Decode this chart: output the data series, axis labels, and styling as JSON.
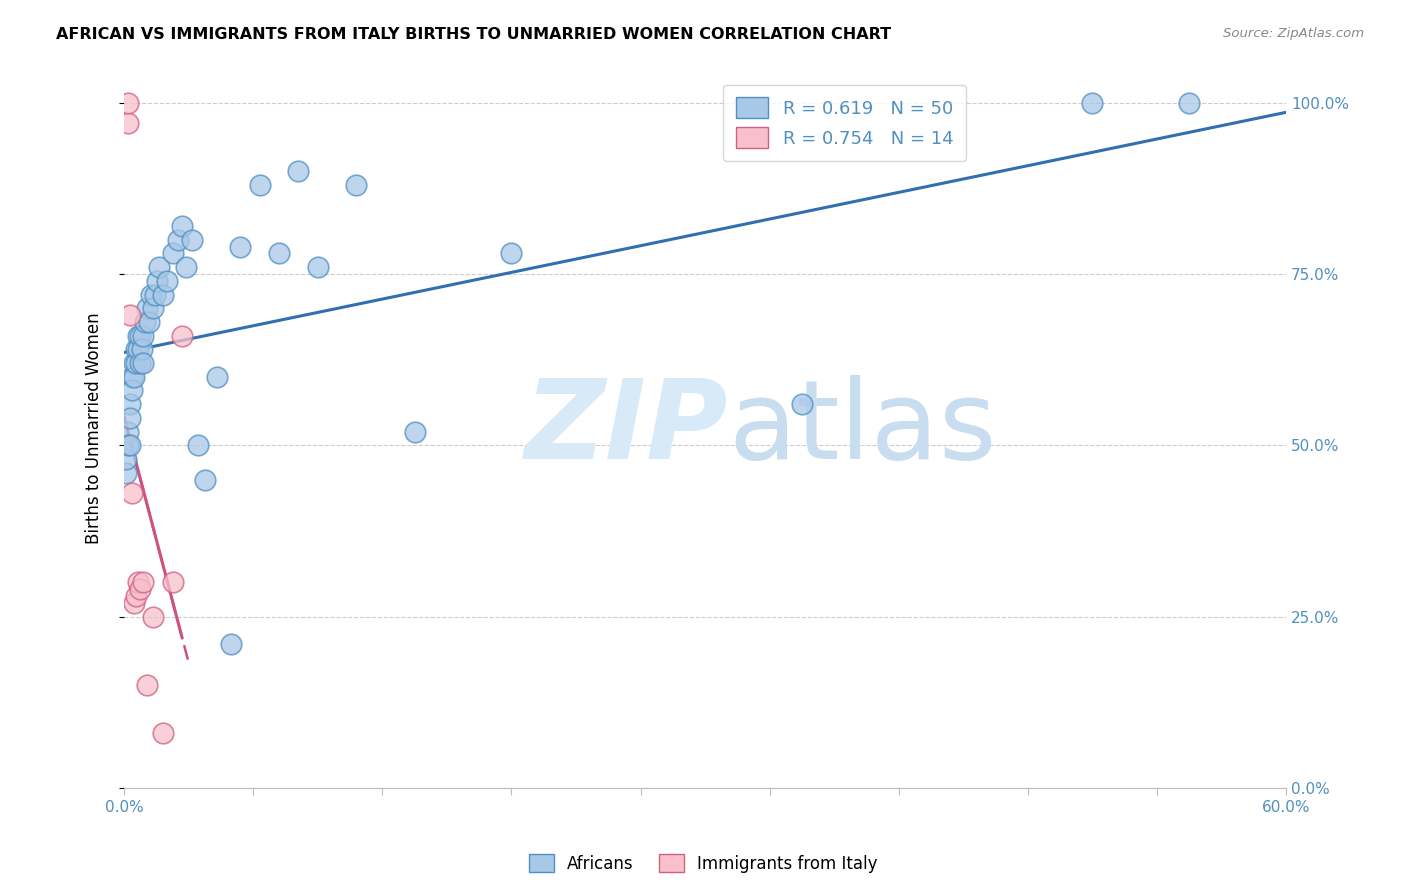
{
  "title": "AFRICAN VS IMMIGRANTS FROM ITALY BIRTHS TO UNMARRIED WOMEN CORRELATION CHART",
  "source": "Source: ZipAtlas.com",
  "ylabel": "Births to Unmarried Women",
  "legend_africans": "Africans",
  "legend_italy": "Immigrants from Italy",
  "R_africans": 0.619,
  "N_africans": 50,
  "R_italy": 0.754,
  "N_italy": 14,
  "blue_scatter_color": "#a8c8e8",
  "blue_scatter_edge": "#5090c0",
  "pink_scatter_color": "#f8c0cc",
  "pink_scatter_edge": "#d06080",
  "blue_line_color": "#3070b0",
  "pink_line_color": "#d05080",
  "watermark_color": "#d8eaf8",
  "grid_color": "#cccccc",
  "tick_color": "#5090c0",
  "africans_x": [
    0.001,
    0.001,
    0.002,
    0.002,
    0.003,
    0.003,
    0.003,
    0.004,
    0.004,
    0.005,
    0.005,
    0.006,
    0.006,
    0.007,
    0.007,
    0.008,
    0.008,
    0.009,
    0.01,
    0.01,
    0.011,
    0.012,
    0.013,
    0.014,
    0.015,
    0.016,
    0.017,
    0.018,
    0.02,
    0.022,
    0.025,
    0.028,
    0.03,
    0.032,
    0.035,
    0.038,
    0.042,
    0.048,
    0.055,
    0.06,
    0.07,
    0.08,
    0.09,
    0.1,
    0.12,
    0.15,
    0.2,
    0.35,
    0.5,
    0.55
  ],
  "africans_y": [
    0.46,
    0.48,
    0.52,
    0.5,
    0.56,
    0.54,
    0.5,
    0.6,
    0.58,
    0.62,
    0.6,
    0.64,
    0.62,
    0.66,
    0.64,
    0.62,
    0.66,
    0.64,
    0.66,
    0.62,
    0.68,
    0.7,
    0.68,
    0.72,
    0.7,
    0.72,
    0.74,
    0.76,
    0.72,
    0.74,
    0.78,
    0.8,
    0.82,
    0.76,
    0.8,
    0.5,
    0.45,
    0.6,
    0.21,
    0.79,
    0.88,
    0.78,
    0.9,
    0.76,
    0.88,
    0.52,
    0.78,
    0.56,
    1.0,
    1.0
  ],
  "italy_x": [
    0.002,
    0.002,
    0.003,
    0.004,
    0.005,
    0.006,
    0.007,
    0.008,
    0.01,
    0.012,
    0.015,
    0.02,
    0.025,
    0.03
  ],
  "italy_y": [
    0.97,
    1.0,
    0.69,
    0.43,
    0.27,
    0.28,
    0.3,
    0.29,
    0.3,
    0.15,
    0.25,
    0.08,
    0.3,
    0.66
  ],
  "blue_line_x0": 0.0,
  "blue_line_x1": 0.6,
  "pink_line_x0": -0.002,
  "pink_line_x1": 0.04,
  "xlim": [
    0.0,
    0.6
  ],
  "ylim": [
    0.0,
    1.05
  ],
  "y_ticks": [
    0.0,
    0.25,
    0.5,
    0.75,
    1.0
  ]
}
